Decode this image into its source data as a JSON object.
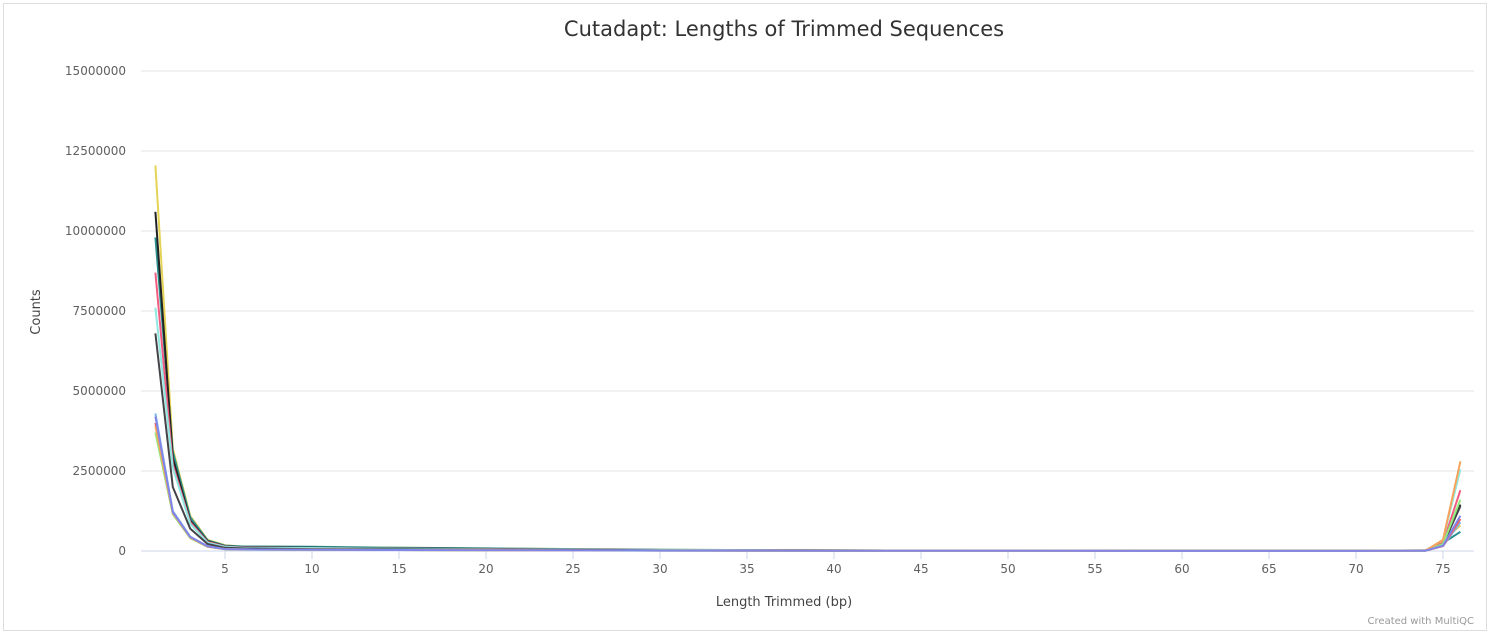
{
  "chart_data": {
    "type": "line",
    "title": "Cutadapt: Lengths of Trimmed Sequences",
    "xlabel": "Length Trimmed (bp)",
    "ylabel": "Counts",
    "xlim": [
      1,
      76
    ],
    "ylim": [
      0,
      15000000
    ],
    "xticks": [
      5,
      10,
      15,
      20,
      25,
      30,
      35,
      40,
      45,
      50,
      55,
      60,
      65,
      70,
      75
    ],
    "yticks": [
      0,
      2500000,
      5000000,
      7500000,
      10000000,
      12500000,
      15000000
    ],
    "grid": true,
    "legend": "none",
    "x": [
      1,
      2,
      3,
      4,
      5,
      6,
      10,
      15,
      20,
      30,
      40,
      50,
      60,
      70,
      74,
      75,
      76
    ],
    "series": [
      {
        "color": "#e4d354",
        "values": [
          12050000,
          3200000,
          1100000,
          350000,
          180000,
          140000,
          120000,
          100000,
          80000,
          40000,
          20000,
          10000,
          8000,
          8000,
          20000,
          300000,
          800000
        ]
      },
      {
        "color": "#2b908f",
        "values": [
          9800000,
          3100000,
          1050000,
          330000,
          170000,
          140000,
          130000,
          100000,
          80000,
          40000,
          20000,
          10000,
          8000,
          8000,
          20000,
          250000,
          600000
        ]
      },
      {
        "color": "#222222",
        "values": [
          10600000,
          2900000,
          950000,
          300000,
          150000,
          120000,
          100000,
          80000,
          60000,
          30000,
          20000,
          10000,
          8000,
          8000,
          20000,
          200000,
          1450000
        ]
      },
      {
        "color": "#f15c80",
        "values": [
          8700000,
          2700000,
          900000,
          280000,
          140000,
          110000,
          90000,
          70000,
          60000,
          30000,
          15000,
          8000,
          6000,
          6000,
          15000,
          250000,
          1900000
        ]
      },
      {
        "color": "#91e8e1",
        "values": [
          7600000,
          2600000,
          850000,
          260000,
          130000,
          100000,
          90000,
          70000,
          50000,
          30000,
          15000,
          8000,
          6000,
          6000,
          15000,
          350000,
          2550000
        ]
      },
      {
        "color": "#434348",
        "values": [
          6800000,
          2000000,
          700000,
          220000,
          100000,
          80000,
          60000,
          50000,
          40000,
          20000,
          10000,
          6000,
          5000,
          5000,
          12000,
          200000,
          1400000
        ]
      },
      {
        "color": "#7cb5ec",
        "values": [
          4300000,
          1250000,
          450000,
          150000,
          60000,
          50000,
          40000,
          30000,
          25000,
          15000,
          8000,
          5000,
          4000,
          4000,
          10000,
          150000,
          900000
        ]
      },
      {
        "color": "#f45b5b",
        "values": [
          4000000,
          1200000,
          430000,
          140000,
          60000,
          50000,
          40000,
          30000,
          25000,
          15000,
          8000,
          5000,
          4000,
          4000,
          10000,
          160000,
          1000000
        ]
      },
      {
        "color": "#90ed7d",
        "values": [
          3700000,
          1150000,
          400000,
          130000,
          55000,
          45000,
          35000,
          30000,
          20000,
          12000,
          7000,
          4000,
          3000,
          3000,
          10000,
          220000,
          1600000
        ]
      },
      {
        "color": "#f7a35c",
        "values": [
          3900000,
          1180000,
          420000,
          135000,
          58000,
          48000,
          38000,
          30000,
          22000,
          13000,
          7000,
          4000,
          3000,
          3000,
          12000,
          350000,
          2800000
        ]
      },
      {
        "color": "#8085e9",
        "values": [
          4200000,
          1220000,
          440000,
          145000,
          60000,
          50000,
          40000,
          30000,
          24000,
          14000,
          8000,
          5000,
          4000,
          4000,
          10000,
          170000,
          1100000
        ]
      }
    ]
  },
  "credit": "Created with MultiQC"
}
